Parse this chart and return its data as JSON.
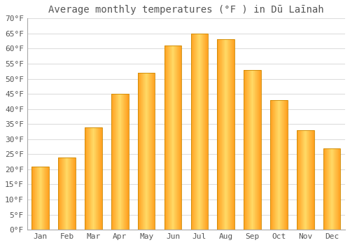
{
  "title": "Average monthly temperatures (°F ) in Dū Laīnah",
  "months": [
    "Jan",
    "Feb",
    "Mar",
    "Apr",
    "May",
    "Jun",
    "Jul",
    "Aug",
    "Sep",
    "Oct",
    "Nov",
    "Dec"
  ],
  "values": [
    21,
    24,
    34,
    45,
    52,
    61,
    65,
    63,
    53,
    43,
    33,
    27
  ],
  "bar_color_center": "#FFD966",
  "bar_color_edge": "#FFA020",
  "background_color": "#FFFFFF",
  "grid_color": "#DDDDDD",
  "text_color": "#555555",
  "ylim": [
    0,
    70
  ],
  "yticks": [
    0,
    5,
    10,
    15,
    20,
    25,
    30,
    35,
    40,
    45,
    50,
    55,
    60,
    65,
    70
  ],
  "ytick_labels": [
    "0°F",
    "5°F",
    "10°F",
    "15°F",
    "20°F",
    "25°F",
    "30°F",
    "35°F",
    "40°F",
    "45°F",
    "50°F",
    "55°F",
    "60°F",
    "65°F",
    "70°F"
  ],
  "title_fontsize": 10,
  "tick_fontsize": 8,
  "bar_width": 0.65
}
